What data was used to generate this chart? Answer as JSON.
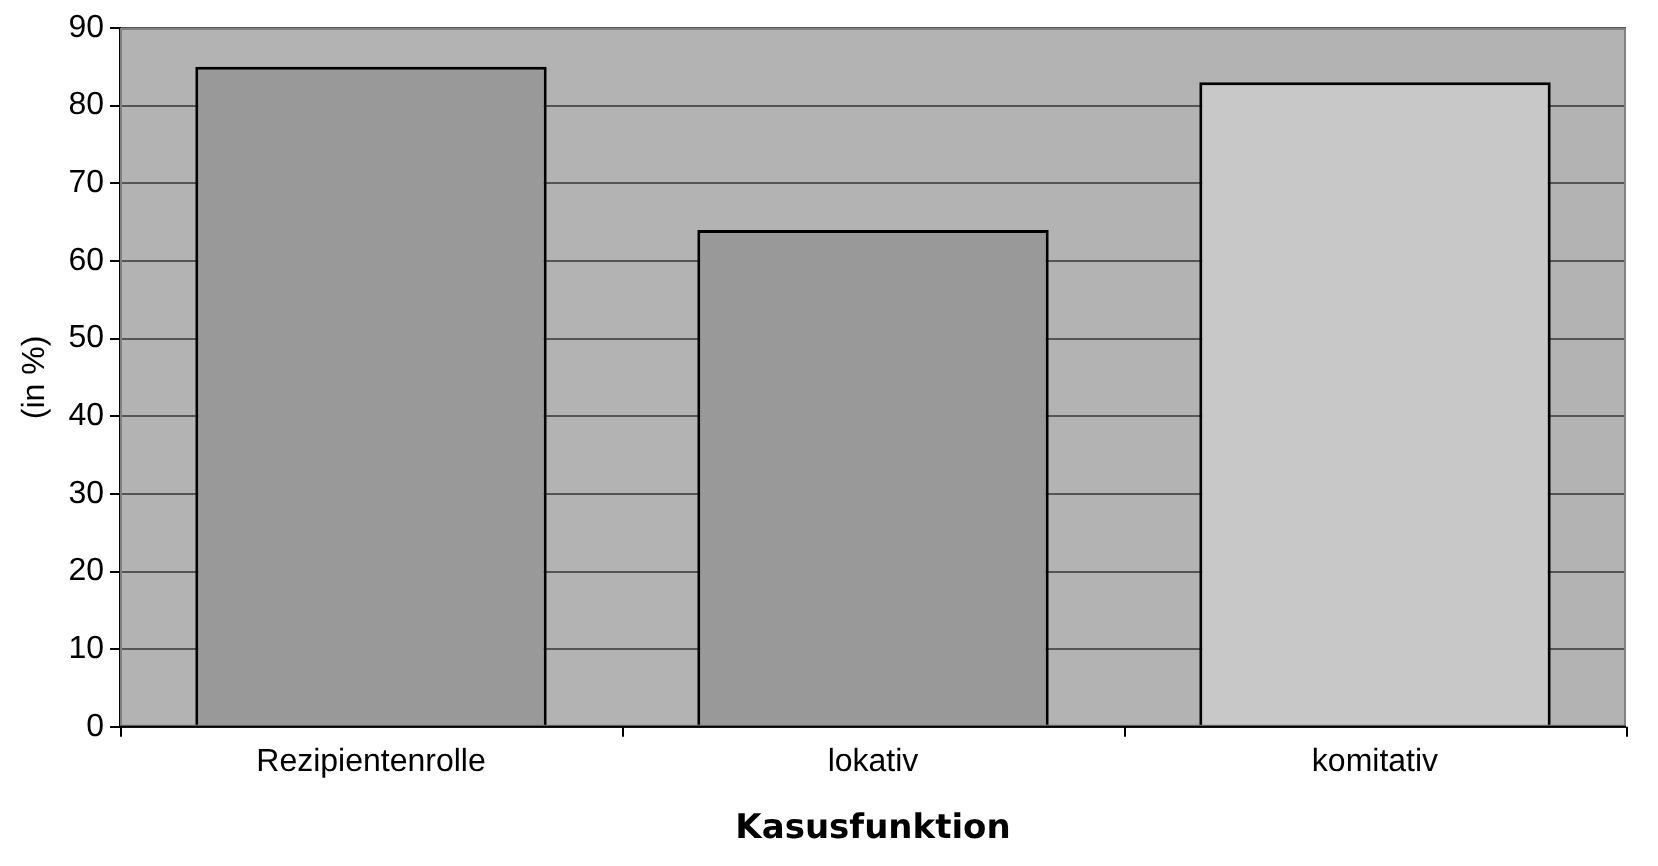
{
  "chart_data": {
    "type": "bar",
    "xlabel": "Kasusfunktion",
    "ylabel": "(in %)",
    "categories": [
      "Rezipientenrolle",
      "lokativ",
      "komitativ"
    ],
    "values": [
      85,
      64,
      83
    ],
    "colors": [
      "#999999",
      "#999999",
      "#c8c8c8"
    ],
    "ylim": [
      0,
      90
    ],
    "yticks": [
      0,
      10,
      20,
      30,
      40,
      50,
      60,
      70,
      80,
      90
    ],
    "grid": "y",
    "legend": false
  }
}
